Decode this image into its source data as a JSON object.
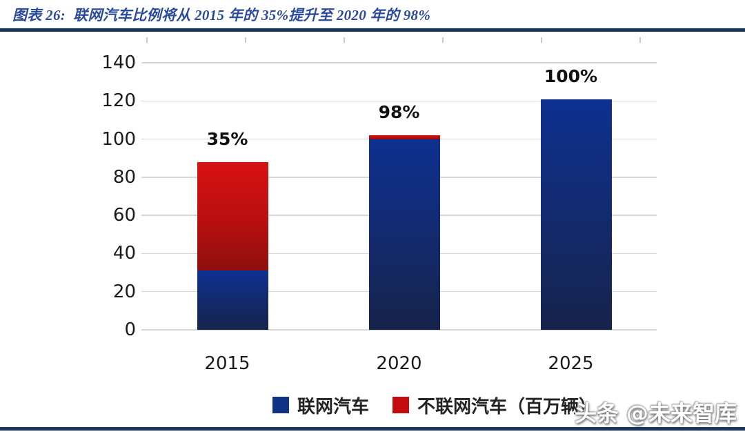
{
  "page": {
    "title": "图表 26:  联网汽车比例将从 2015 年的 35%提升至 2020 年的 98%",
    "title_color": "#2B4A9B",
    "accent_color": "#17375E",
    "watermark": "头条 @未来智库"
  },
  "chart_data": {
    "type": "bar",
    "stacked": true,
    "title": "联网汽车比例将从 2015 年的 35%提升至 2020 年的 98%",
    "categories": [
      "2015",
      "2020",
      "2025"
    ],
    "series": [
      {
        "name": "联网汽车",
        "color": "#123287",
        "gradient": [
          "#0E3090",
          "#13296B",
          "#16234B"
        ],
        "values": [
          31,
          100,
          121
        ]
      },
      {
        "name": "不联网汽车（百万辆）",
        "color": "#C50D0F",
        "gradient": [
          "#D91113",
          "#B80F10",
          "#8E0F0F"
        ],
        "values": [
          57,
          2,
          0
        ]
      }
    ],
    "bar_labels": [
      "35%",
      "98%",
      "100%"
    ],
    "xlabel": "",
    "ylabel": "",
    "unit": "百万辆",
    "ylim": [
      0,
      140
    ],
    "yticks": [
      0,
      20,
      40,
      60,
      80,
      100,
      120,
      140
    ],
    "grid": true,
    "gridline_color": "#d6d6d6",
    "legend_position": "bottom"
  }
}
